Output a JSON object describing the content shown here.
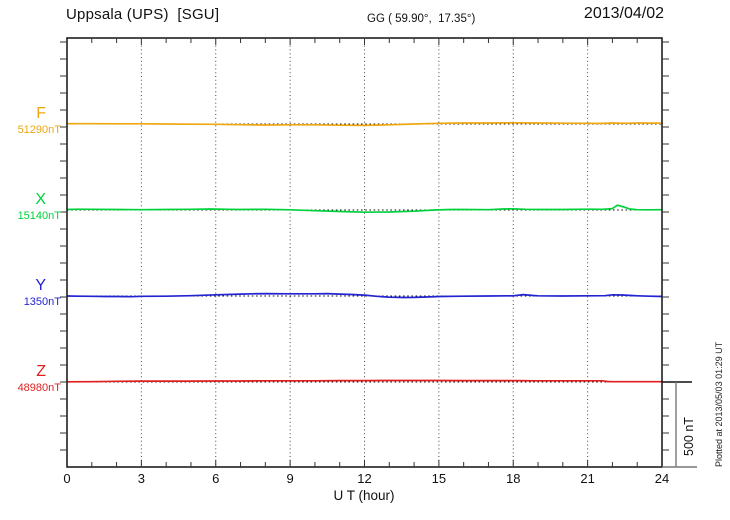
{
  "header": {
    "title": "Uppsala (UPS)  [SGU]",
    "coords": "GG ( 59.90°,  17.35°)",
    "date": "2013/04/02"
  },
  "channels": [
    {
      "label": "F",
      "value": "51290nT",
      "color": "#efa711"
    },
    {
      "label": "X",
      "value": "15140nT",
      "color": "#00d23c"
    },
    {
      "label": "Y",
      "value": "1350nT",
      "color": "#2323d2"
    },
    {
      "label": "Z",
      "value": "48980nT",
      "color": "#e01f1f"
    }
  ],
  "axis": {
    "xlabel": "U T (hour)",
    "x_ticks": [
      0,
      3,
      6,
      9,
      12,
      15,
      18,
      21,
      24
    ],
    "minor_tick_hours": 1,
    "y_division_nT": 100
  },
  "scalebar": {
    "label": "500 nT",
    "nT": 500
  },
  "footer_note": "Plotted at 2013/05/03 01:29 UT",
  "chart_data": {
    "type": "line",
    "title": "Uppsala (UPS) [SGU] magnetogram 2013/04/02",
    "xlabel": "U T (hour)",
    "x_range": [
      0,
      24
    ],
    "x_tick_step": 3,
    "grid": "vertical-dotted-every-3h",
    "scale_bar_nT": 500,
    "series": [
      {
        "name": "F",
        "baseline_nT": 51290,
        "color": "#efa711",
        "points_hour_offsetnT": [
          [
            0,
            2
          ],
          [
            1,
            2
          ],
          [
            2,
            1
          ],
          [
            3,
            1
          ],
          [
            4,
            0
          ],
          [
            5,
            -1
          ],
          [
            6,
            -2
          ],
          [
            7,
            -4
          ],
          [
            8,
            -6
          ],
          [
            9,
            -5
          ],
          [
            10,
            -5
          ],
          [
            11,
            -7
          ],
          [
            12,
            -8
          ],
          [
            13,
            -5
          ],
          [
            14,
            0
          ],
          [
            15,
            4
          ],
          [
            16,
            6
          ],
          [
            17,
            6
          ],
          [
            18,
            7
          ],
          [
            19,
            6
          ],
          [
            20,
            5
          ],
          [
            21,
            4
          ],
          [
            21.5,
            3
          ],
          [
            22,
            6
          ],
          [
            22.5,
            4
          ],
          [
            23,
            6
          ],
          [
            24,
            5
          ]
        ]
      },
      {
        "name": "X",
        "baseline_nT": 15140,
        "color": "#00d23c",
        "points_hour_offsetnT": [
          [
            0,
            3
          ],
          [
            0.5,
            5
          ],
          [
            1,
            4
          ],
          [
            2,
            3
          ],
          [
            3,
            2
          ],
          [
            4,
            3
          ],
          [
            5,
            4
          ],
          [
            5.8,
            6
          ],
          [
            6.5,
            4
          ],
          [
            7,
            3
          ],
          [
            8,
            4
          ],
          [
            9,
            1
          ],
          [
            10,
            -4
          ],
          [
            11,
            -9
          ],
          [
            12,
            -13
          ],
          [
            13,
            -12
          ],
          [
            14,
            -7
          ],
          [
            14.8,
            0
          ],
          [
            15.5,
            3
          ],
          [
            16,
            3
          ],
          [
            17,
            2
          ],
          [
            17.6,
            6
          ],
          [
            18,
            7
          ],
          [
            18.5,
            4
          ],
          [
            19,
            3
          ],
          [
            20,
            3
          ],
          [
            21,
            5
          ],
          [
            21.6,
            4
          ],
          [
            22,
            8
          ],
          [
            22.2,
            28
          ],
          [
            22.45,
            18
          ],
          [
            22.7,
            6
          ],
          [
            23,
            2
          ],
          [
            23.5,
            1
          ],
          [
            24,
            2
          ]
        ]
      },
      {
        "name": "Y",
        "baseline_nT": 1350,
        "color": "#2323d2",
        "points_hour_offsetnT": [
          [
            0,
            0
          ],
          [
            0.5,
            -1
          ],
          [
            1,
            -2
          ],
          [
            1.6,
            -3
          ],
          [
            2,
            -3
          ],
          [
            2.6,
            -4
          ],
          [
            3,
            -2
          ],
          [
            4,
            -1
          ],
          [
            5,
            2
          ],
          [
            6,
            7
          ],
          [
            7,
            11
          ],
          [
            7.5,
            13
          ],
          [
            8,
            14
          ],
          [
            9,
            13
          ],
          [
            10,
            13
          ],
          [
            10.5,
            14
          ],
          [
            11,
            11
          ],
          [
            11.5,
            9
          ],
          [
            12,
            5
          ],
          [
            12.5,
            -2
          ],
          [
            13,
            -7
          ],
          [
            13.6,
            -9
          ],
          [
            14,
            -8
          ],
          [
            14.5,
            -6
          ],
          [
            15,
            -3
          ],
          [
            16,
            -1
          ],
          [
            17,
            0
          ],
          [
            18,
            1
          ],
          [
            18.4,
            8
          ],
          [
            18.8,
            3
          ],
          [
            19,
            1
          ],
          [
            20,
            0
          ],
          [
            21,
            1
          ],
          [
            21.7,
            2
          ],
          [
            22,
            7
          ],
          [
            22.4,
            6
          ],
          [
            23,
            1
          ],
          [
            23.5,
            -1
          ],
          [
            24,
            -3
          ]
        ]
      },
      {
        "name": "Z",
        "baseline_nT": 48980,
        "color": "#e01f1f",
        "points_hour_offsetnT": [
          [
            0,
            1
          ],
          [
            1,
            2
          ],
          [
            2,
            4
          ],
          [
            3,
            5
          ],
          [
            4,
            5
          ],
          [
            5,
            5
          ],
          [
            6,
            6
          ],
          [
            7,
            6
          ],
          [
            8,
            7
          ],
          [
            9,
            7
          ],
          [
            10,
            7
          ],
          [
            11,
            8
          ],
          [
            12,
            8
          ],
          [
            13,
            9
          ],
          [
            14,
            9
          ],
          [
            15,
            9
          ],
          [
            16,
            8
          ],
          [
            17,
            8
          ],
          [
            18,
            8
          ],
          [
            19,
            7
          ],
          [
            20,
            7
          ],
          [
            21,
            7
          ],
          [
            21.6,
            7
          ],
          [
            21.8,
            3
          ],
          [
            22,
            2
          ],
          [
            23,
            2
          ],
          [
            24,
            2
          ]
        ]
      }
    ]
  }
}
